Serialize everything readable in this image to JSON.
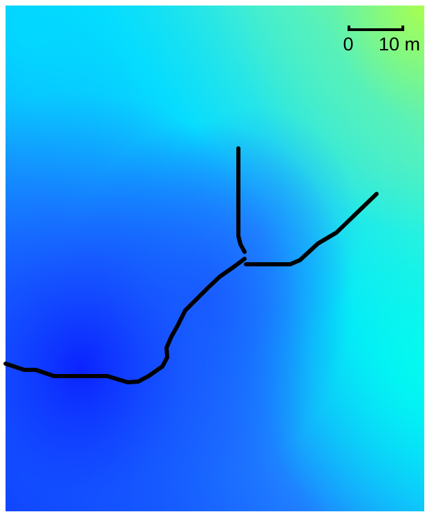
{
  "scale_bar": {
    "tick_start": "0",
    "tick_end": "10 m"
  },
  "colors": {
    "stream_line": "#000000",
    "elevation_low": "#0a1fff",
    "elevation_mid": "#00e5ff",
    "elevation_high": "#b8ff4a"
  }
}
